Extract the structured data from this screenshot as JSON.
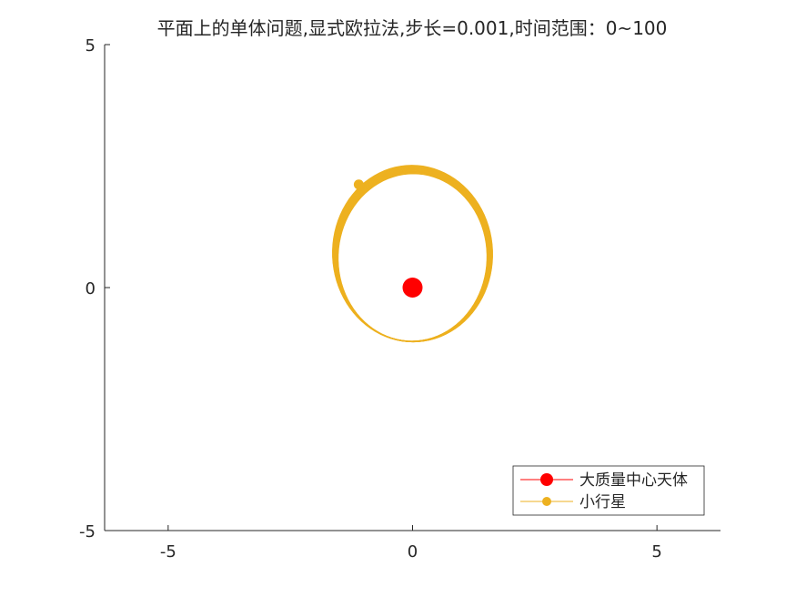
{
  "chart_data": {
    "type": "line",
    "title": "平面上的单体问题,显式欧拉法,步长=0.001,时间范围：0~100",
    "xlabel": "",
    "ylabel": "",
    "xlim": [
      -6.3,
      6.3
    ],
    "ylim": [
      -5,
      5
    ],
    "x_ticks": [
      -5,
      0,
      5
    ],
    "y_ticks": [
      -5,
      0,
      5
    ],
    "x_tick_labels": [
      "-5",
      "0",
      "5"
    ],
    "y_tick_labels": [
      "-5",
      "0",
      "5"
    ],
    "grid": false,
    "legend_position": "bottom-right",
    "series": [
      {
        "name": "大质量中心天体",
        "color": "#ff0000",
        "marker": "filled-circle-large",
        "points": [
          [
            0,
            0
          ]
        ]
      },
      {
        "name": "小行星",
        "color": "#edb120",
        "marker": "filled-circle-small",
        "orbit": {
          "center_x": 0,
          "center_y_start": 0.62,
          "center_y_end": 0.7,
          "semi_x_start": 1.52,
          "semi_x_end": 1.64,
          "semi_y_start": 1.72,
          "semi_y_end": 1.82,
          "loops": 28
        },
        "current_position": [
          -1.1,
          2.12
        ]
      }
    ]
  }
}
